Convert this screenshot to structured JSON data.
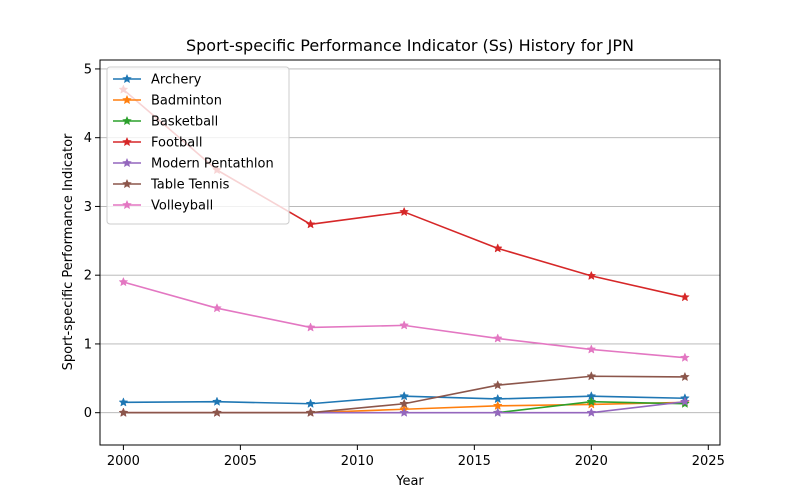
{
  "chart_data": {
    "type": "line",
    "title": "Sport-specific Performance Indicator (Ss) History for JPN",
    "xlabel": "Year",
    "ylabel": "Sport-specific Performance Indicator",
    "xlim": [
      1999,
      2025.5
    ],
    "ylim": [
      -0.47,
      5.13
    ],
    "xticks": [
      2000,
      2005,
      2010,
      2015,
      2020,
      2025
    ],
    "yticks": [
      0,
      1,
      2,
      3,
      4,
      5
    ],
    "grid": "y-major",
    "legend_position": "top-left",
    "marker": "star",
    "x": [
      2000,
      2004,
      2008,
      2012,
      2016,
      2020,
      2024
    ],
    "series": [
      {
        "name": "Archery",
        "color": "#1f77b4",
        "x": [
          2000,
          2004,
          2008,
          2012,
          2016,
          2020,
          2024
        ],
        "values": [
          0.15,
          0.16,
          0.13,
          0.24,
          0.2,
          0.24,
          0.21
        ]
      },
      {
        "name": "Badminton",
        "color": "#ff7f0e",
        "x": [
          2000,
          2004,
          2008,
          2012,
          2016,
          2020,
          2024
        ],
        "values": [
          0.0,
          0.0,
          0.0,
          0.05,
          0.1,
          0.12,
          0.15
        ]
      },
      {
        "name": "Basketball",
        "color": "#2ca02c",
        "x": [
          2016,
          2020,
          2024
        ],
        "values": [
          0.0,
          0.16,
          0.13
        ]
      },
      {
        "name": "Football",
        "color": "#d62728",
        "x": [
          2000,
          2004,
          2008,
          2012,
          2016,
          2020,
          2024
        ],
        "values": [
          4.7,
          3.53,
          2.74,
          2.92,
          2.39,
          1.99,
          1.68
        ]
      },
      {
        "name": "Modern Pentathlon",
        "color": "#9467bd",
        "x": [
          2000,
          2004,
          2008,
          2012,
          2016,
          2020,
          2024
        ],
        "values": [
          0.0,
          0.0,
          0.0,
          0.0,
          0.0,
          0.0,
          0.16
        ]
      },
      {
        "name": "Table Tennis",
        "color": "#8c564b",
        "x": [
          2000,
          2004,
          2008,
          2012,
          2016,
          2020,
          2024
        ],
        "values": [
          0.0,
          0.0,
          0.0,
          0.13,
          0.4,
          0.53,
          0.52
        ]
      },
      {
        "name": "Volleyball",
        "color": "#e377c2",
        "x": [
          2000,
          2004,
          2008,
          2012,
          2016,
          2020,
          2024
        ],
        "values": [
          1.9,
          1.52,
          1.24,
          1.27,
          1.08,
          0.92,
          0.8
        ]
      }
    ]
  }
}
